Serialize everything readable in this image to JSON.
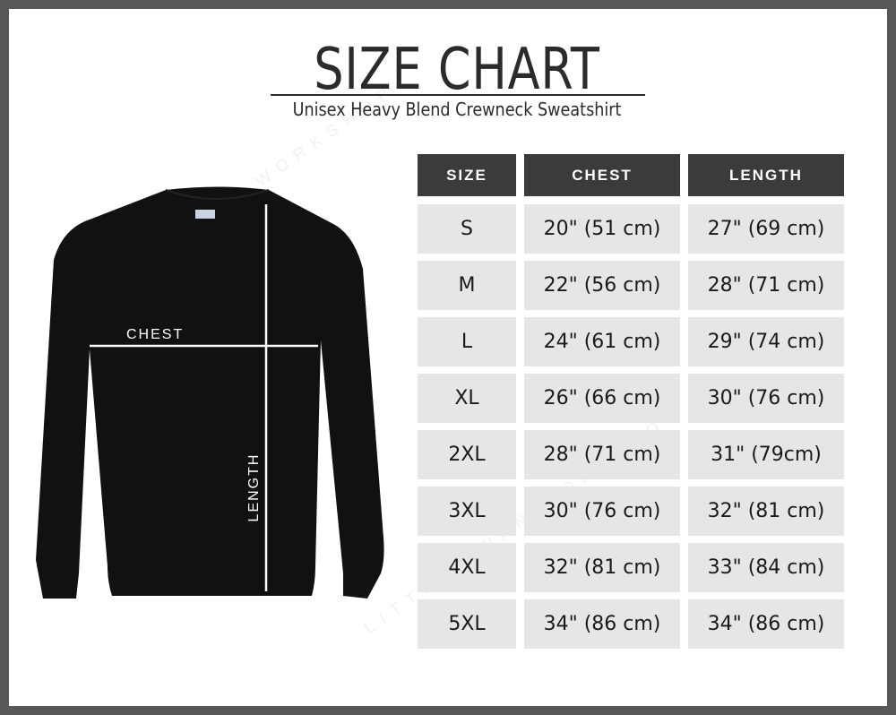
{
  "header": {
    "title": "SIZE CHART",
    "subtitle": "Unisex Heavy Blend Crewneck Sweatshirt"
  },
  "diagram": {
    "chest_label": "CHEST",
    "length_label": "LENGTH",
    "garment_color": "#111111"
  },
  "watermark": "LITTLE SWAN WORKSHOP",
  "table": {
    "columns": [
      "SIZE",
      "CHEST",
      "LENGTH"
    ],
    "rows": [
      [
        "S",
        "20\" (51 cm)",
        "27\" (69 cm)"
      ],
      [
        "M",
        "22\" (56 cm)",
        "28\" (71 cm)"
      ],
      [
        "L",
        "24\" (61 cm)",
        "29\" (74 cm)"
      ],
      [
        "XL",
        "26\" (66 cm)",
        "30\" (76 cm)"
      ],
      [
        "2XL",
        "28\" (71 cm)",
        "31\" (79cm)"
      ],
      [
        "3XL",
        "30\" (76 cm)",
        "32\" (81 cm)"
      ],
      [
        "4XL",
        "32\" (81 cm)",
        "33\" (84 cm)"
      ],
      [
        "5XL",
        "34\" (86 cm)",
        "34\" (86 cm)"
      ]
    ]
  },
  "colors": {
    "frame": "#58585a",
    "header_bg": "#3b3b3b",
    "cell_bg": "#e6e6e6"
  }
}
